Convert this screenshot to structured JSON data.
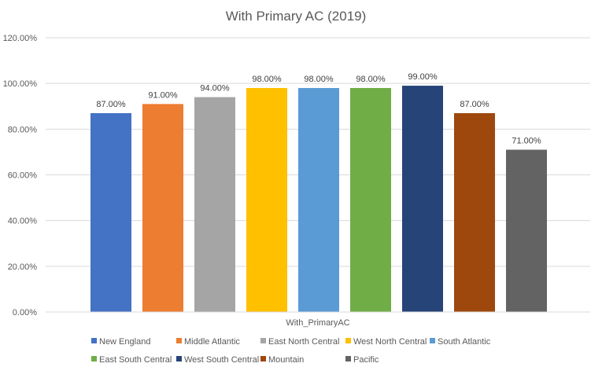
{
  "chart_data": {
    "type": "bar",
    "title": "With Primary AC (2019)",
    "xlabel": "With_PrimaryAC",
    "ylabel": "",
    "ylim": [
      0,
      120
    ],
    "yticks": [
      0,
      20,
      40,
      60,
      80,
      100,
      120
    ],
    "ytick_labels": [
      "0.00%",
      "20.00%",
      "40.00%",
      "60.00%",
      "80.00%",
      "100.00%",
      "120.00%"
    ],
    "grid": true,
    "legend_position": "bottom",
    "categories": [
      "With_PrimaryAC"
    ],
    "series": [
      {
        "name": "New England",
        "values": [
          87
        ],
        "label": "87.00%",
        "color": "#4472C4"
      },
      {
        "name": "Middle Atlantic",
        "values": [
          91
        ],
        "label": "91.00%",
        "color": "#ED7D31"
      },
      {
        "name": "East North Central",
        "values": [
          94
        ],
        "label": "94.00%",
        "color": "#A5A5A5"
      },
      {
        "name": "West North Central",
        "values": [
          98
        ],
        "label": "98.00%",
        "color": "#FFC000"
      },
      {
        "name": "South Atlantic",
        "values": [
          98
        ],
        "label": "98.00%",
        "color": "#5B9BD5"
      },
      {
        "name": "East South Central",
        "values": [
          98
        ],
        "label": "98.00%",
        "color": "#70AD47"
      },
      {
        "name": "West South Central",
        "values": [
          99
        ],
        "label": "99.00%",
        "color": "#264478"
      },
      {
        "name": "Mountain",
        "values": [
          87
        ],
        "label": "87.00%",
        "color": "#9E480E"
      },
      {
        "name": "Pacific",
        "values": [
          71
        ],
        "label": "71.00%",
        "color": "#636363"
      }
    ]
  }
}
